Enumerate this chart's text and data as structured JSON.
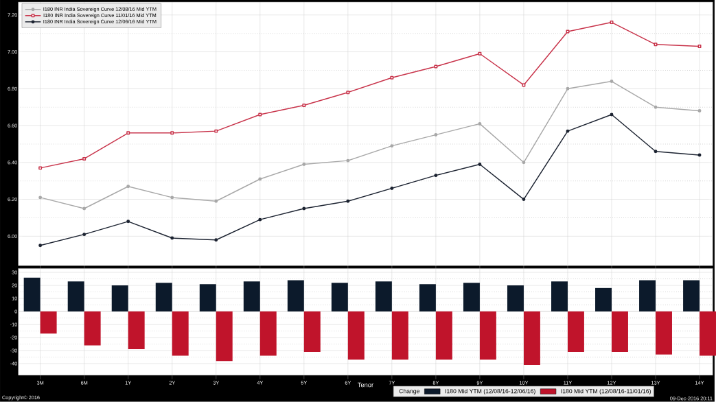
{
  "chart_data": [
    {
      "type": "line",
      "categories": [
        null,
        null,
        null,
        null,
        null,
        null,
        null,
        null,
        null,
        null,
        null,
        null,
        null,
        null,
        null,
        null
      ],
      "series": [
        {
          "name": "I180 INR India Sovereign Curve 12/08/16 Mid YTM",
          "color": "#a8a8a8",
          "marker": "circle",
          "values": [
            6.21,
            6.15,
            6.27,
            6.21,
            6.19,
            6.31,
            6.39,
            6.41,
            6.49,
            6.55,
            6.61,
            6.4,
            6.8,
            6.84,
            6.7,
            6.68
          ]
        },
        {
          "name": "I180 INR India Sovereign Curve 11/01/16 Mid YTM",
          "color": "#c8334a",
          "marker": "square",
          "values": [
            6.37,
            6.42,
            6.56,
            6.56,
            6.57,
            6.66,
            6.71,
            6.78,
            6.86,
            6.92,
            6.99,
            6.82,
            7.11,
            7.16,
            7.04,
            7.03
          ]
        },
        {
          "name": "I180 INR India Sovereign Curve 12/06/16 Mid YTM",
          "color": "#1c2331",
          "marker": "circle",
          "values": [
            5.95,
            6.01,
            6.08,
            5.99,
            5.98,
            6.09,
            6.15,
            6.19,
            6.26,
            6.33,
            6.39,
            6.2,
            6.57,
            6.66,
            6.46,
            6.44
          ]
        }
      ],
      "ylim": [
        5.84,
        7.27
      ],
      "yticks": [
        {
          "value": 6.0,
          "label": "6.00"
        },
        {
          "value": 6.2,
          "label": "6.20"
        },
        {
          "value": 6.4,
          "label": "6.40"
        },
        {
          "value": 6.6,
          "label": "6.60"
        },
        {
          "value": 6.8,
          "label": "6.80"
        },
        {
          "value": 7.0,
          "label": "7.00"
        },
        {
          "value": 7.2,
          "label": "7.20"
        }
      ],
      "grid": true,
      "legend": "top left",
      "tick_labels": "y"
    },
    {
      "type": "bar",
      "categories": [
        "3M",
        "6M",
        "1Y",
        "2Y",
        "3Y",
        "4Y",
        "5Y",
        "6Y",
        "7Y",
        "8Y",
        "9Y",
        "10Y",
        "11Y",
        "12Y",
        "13Y",
        "14Y"
      ],
      "legend_title": "Change",
      "xlabel": "Tenor",
      "series": [
        {
          "name": "I180 Mid YTM (12/08/16-12/06/16)",
          "color": "#0c1a2b",
          "values": [
            26,
            23,
            20,
            22,
            21,
            23,
            24,
            22,
            23,
            21,
            22,
            20,
            23,
            18,
            24,
            24
          ]
        },
        {
          "name": "I180 Mid YTM (12/08/16-11/01/16)",
          "color": "#c0142b",
          "values": [
            -17,
            -26,
            -29,
            -34,
            -38,
            -34,
            -31,
            -37,
            -37,
            -37,
            -37,
            -41,
            -31,
            -31,
            -33,
            -34
          ]
        }
      ],
      "ylim": [
        -49,
        33
      ],
      "yticks": [
        -40,
        -30,
        -20,
        -10,
        0,
        10,
        20,
        30
      ],
      "grid": true,
      "legend": "bottom",
      "annotations": [
        "Copyright© 2016",
        "09-Dec-2016 20:11"
      ]
    }
  ]
}
